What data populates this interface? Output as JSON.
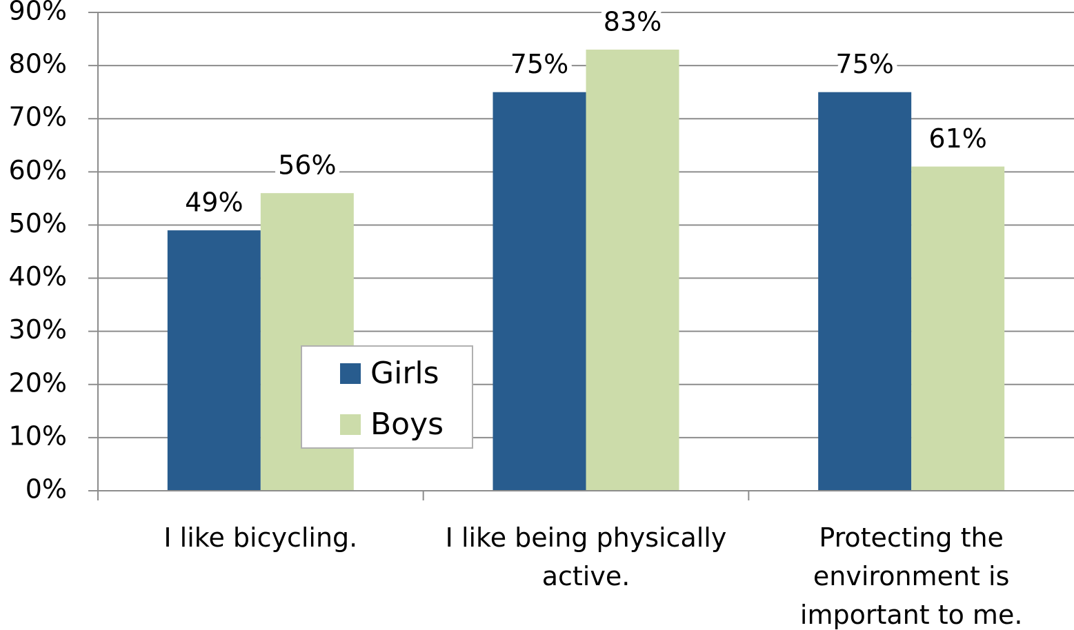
{
  "chart_data": {
    "type": "bar",
    "categories": [
      "I like bicycling.",
      "I like being physically active.",
      "Protecting the environment is important to me."
    ],
    "series": [
      {
        "name": "Girls",
        "color": "#285c8e",
        "values": [
          49,
          75,
          75
        ],
        "value_labels": [
          "49%",
          "75%",
          "75%"
        ]
      },
      {
        "name": "Boys",
        "color": "#ccdcaa",
        "values": [
          56,
          83,
          61
        ],
        "value_labels": [
          "56%",
          "83%",
          "61%"
        ]
      }
    ],
    "ylim": [
      0,
      90
    ],
    "yticks": [
      {
        "value": 0,
        "label": "0%"
      },
      {
        "value": 10,
        "label": "10%"
      },
      {
        "value": 20,
        "label": "20%"
      },
      {
        "value": 30,
        "label": "30%"
      },
      {
        "value": 40,
        "label": "40%"
      },
      {
        "value": 50,
        "label": "50%"
      },
      {
        "value": 60,
        "label": "60%"
      },
      {
        "value": 70,
        "label": "70%"
      },
      {
        "value": 80,
        "label": "80%"
      },
      {
        "value": 90,
        "label": "90%"
      }
    ],
    "grid": true,
    "legend": "center"
  }
}
